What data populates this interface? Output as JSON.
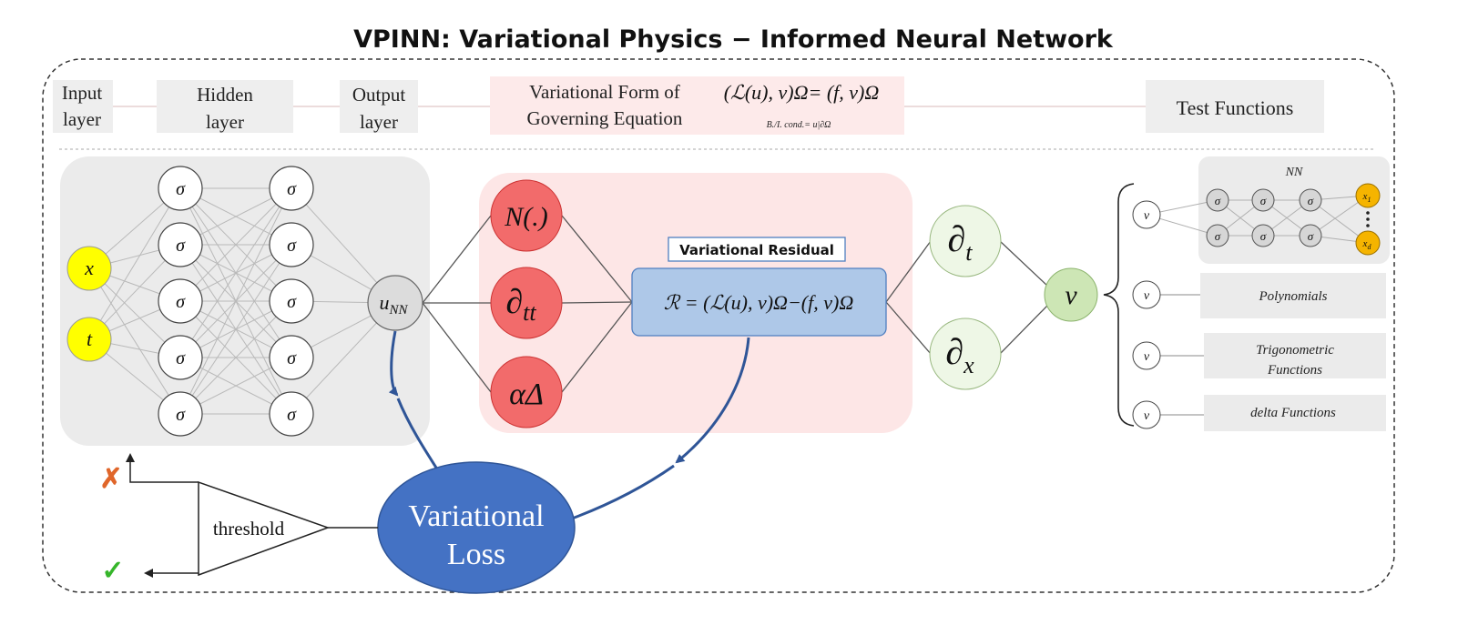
{
  "title": "VPINN: Variational Physics − Informed Neural Network",
  "header": {
    "input_layer": [
      "Input",
      "layer"
    ],
    "hidden_layer": [
      "Hidden",
      "layer"
    ],
    "output_layer": [
      "Output",
      "layer"
    ],
    "variational_form": [
      "Variational Form of",
      "Governing Equation"
    ],
    "equation": "(ℒ(u), v)Ω= (f, v)Ω",
    "bc_note": "B./I. cond.= u|∂Ω",
    "test_functions": "Test Functions"
  },
  "network": {
    "inputs": [
      "x",
      "t"
    ],
    "activation": "σ",
    "hidden_neurons_per_layer": 5,
    "hidden_layers": 2,
    "output": "uNN"
  },
  "operators": [
    "N(.)",
    "∂tt",
    "αΔ"
  ],
  "residual": {
    "label": "Variational Residual",
    "formula": "ℛ = (ℒ(u), v)Ω−(f, v)Ω"
  },
  "derivatives": [
    "∂t",
    "∂x"
  ],
  "test_function": "v",
  "test_function_nn": {
    "label": "NN",
    "input": "v",
    "activation": "σ",
    "outputs": [
      "x1",
      "xd"
    ]
  },
  "test_function_types": [
    {
      "node": "v",
      "label": [
        "Polynomials"
      ]
    },
    {
      "node": "v",
      "label": [
        "Trigonometric",
        "Functions"
      ]
    },
    {
      "node": "v",
      "label": [
        "delta Functions"
      ]
    }
  ],
  "loss": [
    "Variational",
    "Loss"
  ],
  "threshold": "threshold",
  "outcomes": {
    "fail": "✗",
    "pass": "✓"
  },
  "colors": {
    "input_node": "#ffff00",
    "operator_node": "#f26b6b",
    "residual_box": "#aec8e8",
    "loss_ellipse": "#4472c4",
    "derivative_node": "#eef7e6",
    "v_node": "#cde6b5",
    "nn_output_node": "#f5b400",
    "curve_arrow": "#2f5597"
  }
}
